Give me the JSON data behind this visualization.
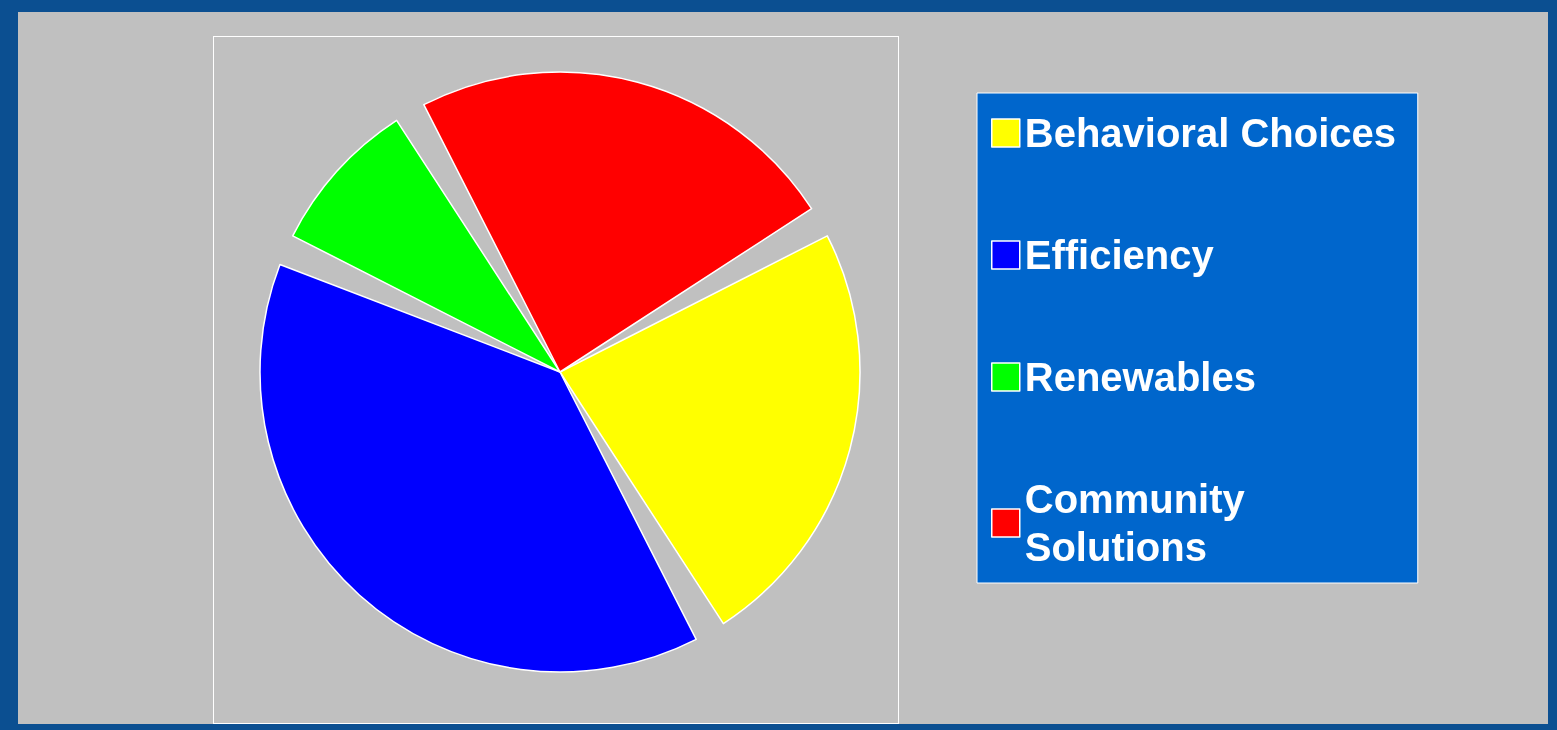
{
  "chart_data": {
    "type": "pie",
    "categories": [
      "Behavioral Choices",
      "Efficiency",
      "Renewables",
      "Community Solutions"
    ],
    "values": [
      25,
      40,
      10,
      25
    ],
    "colors": [
      "#ffff00",
      "#0000ff",
      "#00ff00",
      "#ff0000"
    ],
    "legend": "right"
  }
}
